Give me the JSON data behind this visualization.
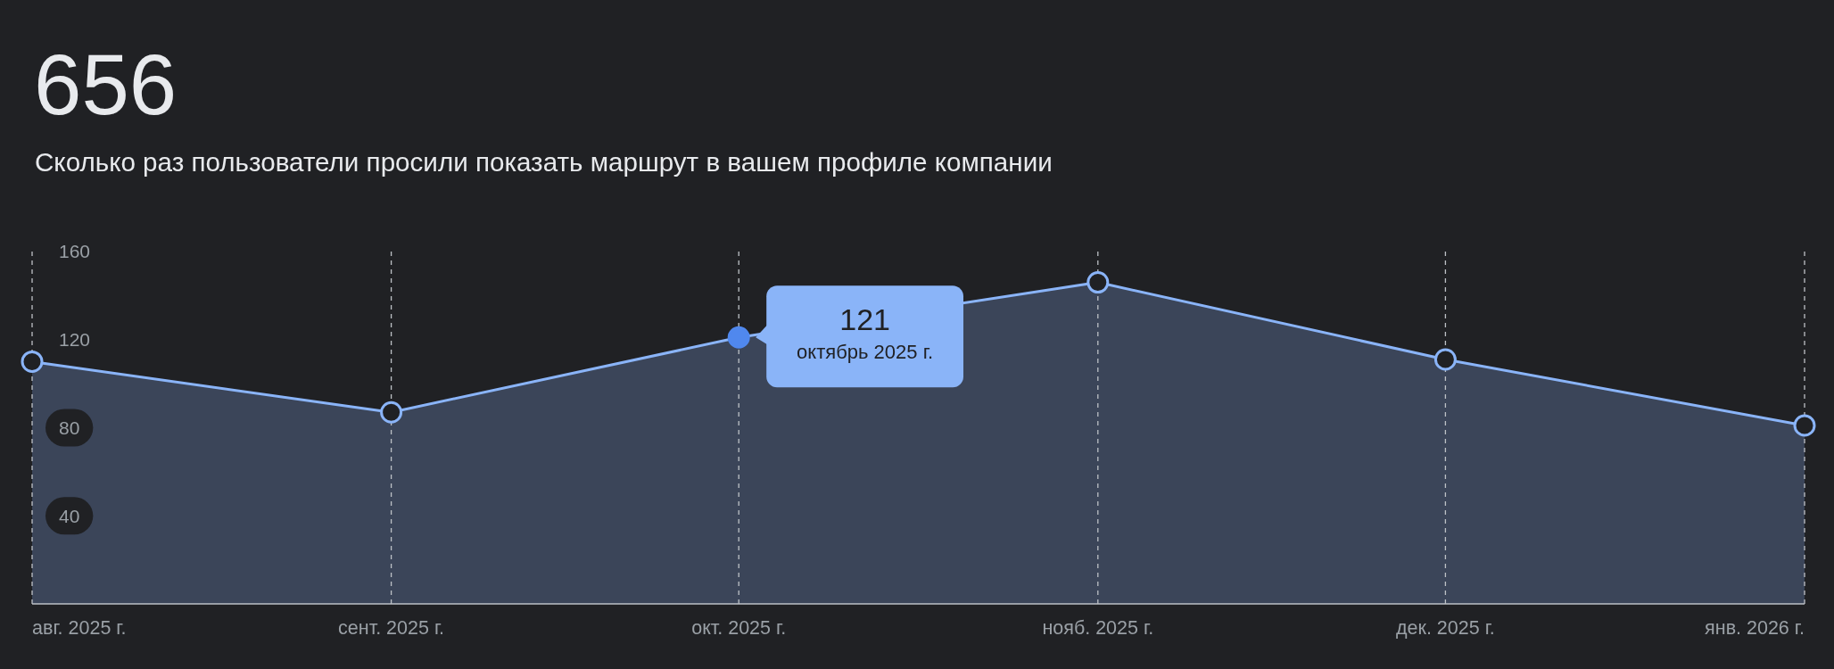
{
  "chart_data": {
    "type": "area",
    "title": "656",
    "subtitle": "Сколько раз пользователи просили показать маршрут в вашем профиле компании",
    "x": [
      "2025-08",
      "2025-09",
      "2025-10",
      "2025-11",
      "2025-12",
      "2026-01"
    ],
    "series": [
      {
        "color": "#8ab4f8",
        "values": [
          110,
          87,
          121,
          146,
          111,
          81
        ]
      }
    ],
    "xlim": [
      "2025-08",
      "2026-01"
    ],
    "xticks": [
      {
        "value": "2025-08",
        "label": "авг. 2025 г."
      },
      {
        "value": "2025-09",
        "label": "сент. 2025 г."
      },
      {
        "value": "2025-10",
        "label": "окт. 2025 г."
      },
      {
        "value": "2025-11",
        "label": "нояб. 2025 г."
      },
      {
        "value": "2025-12",
        "label": "дек. 2025 г."
      },
      {
        "value": "2026-01",
        "label": "янв. 2026 г."
      }
    ],
    "ylim": [
      0,
      160
    ],
    "yticks": [
      40,
      80,
      120,
      160
    ],
    "grid": "x",
    "marker": "circle",
    "line_style": "solid",
    "annotations": [
      {
        "text": "121\nоктябрь 2025 г.",
        "x": "2025-10",
        "y": 121
      }
    ]
  }
}
